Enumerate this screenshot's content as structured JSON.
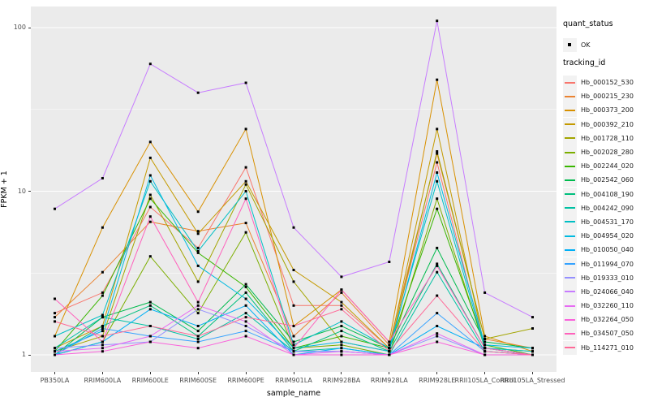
{
  "chart_data": {
    "type": "line",
    "title": "",
    "xlabel": "sample_name",
    "ylabel": "FPKM + 1",
    "y_scale": "log10",
    "ylim": [
      0.95,
      135
    ],
    "grid": "major-and-minor-white-on-gray",
    "y_ticks": [
      {
        "value": 1,
        "label": "1"
      },
      {
        "value": 10,
        "label": "10"
      },
      {
        "value": 100,
        "label": "100"
      }
    ],
    "categories": [
      "PB350LA",
      "RRIM600LA",
      "RRIM600LE",
      "RRIM600SE",
      "RRIM600PE",
      "RRIM901LA",
      "RRIM928BA",
      "RRIM928LA",
      "RRIM928LE",
      "RRII105LA_Control",
      "RRII105LA_Stressed"
    ],
    "series": [
      {
        "name": "Hb_000152_530",
        "color": "#F8766D",
        "values": [
          1.8,
          2.4,
          8.0,
          4.5,
          14.0,
          2.0,
          2.0,
          1.1,
          15.0,
          1.1,
          1.0
        ]
      },
      {
        "name": "Hb_000215_230",
        "color": "#EA8331",
        "values": [
          1.7,
          3.2,
          6.5,
          5.7,
          6.4,
          1.3,
          2.4,
          1.15,
          17.0,
          1.25,
          1.1
        ]
      },
      {
        "name": "Hb_000373_200",
        "color": "#D89000",
        "values": [
          1.3,
          6.0,
          20.0,
          7.5,
          24.0,
          1.5,
          2.5,
          1.2,
          48.0,
          1.3,
          1.05
        ]
      },
      {
        "name": "Hb_000392_210",
        "color": "#C49A00",
        "values": [
          1.1,
          1.5,
          16.0,
          5.5,
          11.5,
          3.3,
          2.1,
          1.1,
          24.0,
          1.1,
          1.0
        ]
      },
      {
        "name": "Hb_001728_110",
        "color": "#A3A500",
        "values": [
          1.05,
          1.3,
          9.5,
          2.8,
          11.0,
          2.8,
          1.2,
          1.05,
          17.5,
          1.25,
          1.45
        ]
      },
      {
        "name": "Hb_002028_280",
        "color": "#7CAE00",
        "values": [
          1.0,
          1.2,
          4.0,
          1.8,
          5.6,
          1.1,
          1.15,
          1.0,
          9.0,
          1.1,
          1.05
        ]
      },
      {
        "name": "Hb_002244_020",
        "color": "#39B600",
        "values": [
          1.05,
          2.3,
          9.0,
          4.2,
          2.6,
          1.1,
          1.3,
          1.1,
          7.8,
          1.15,
          1.0
        ]
      },
      {
        "name": "Hb_002542_060",
        "color": "#00BB4E",
        "values": [
          1.0,
          1.7,
          2.1,
          1.4,
          2.7,
          1.2,
          1.5,
          1.1,
          4.5,
          1.2,
          1.1
        ]
      },
      {
        "name": "Hb_004108_190",
        "color": "#00BF7D",
        "values": [
          1.0,
          1.5,
          2.0,
          1.3,
          2.4,
          1.05,
          1.4,
          1.05,
          3.6,
          1.1,
          1.0
        ]
      },
      {
        "name": "Hb_004242_090",
        "color": "#00C1A3",
        "values": [
          1.1,
          1.7,
          1.5,
          1.25,
          1.8,
          1.05,
          1.1,
          1.0,
          3.2,
          1.05,
          1.0
        ]
      },
      {
        "name": "Hb_004531_170",
        "color": "#00BFC4",
        "values": [
          1.3,
          1.75,
          11.5,
          4.3,
          10.0,
          1.15,
          1.6,
          1.1,
          11.5,
          1.1,
          1.05
        ]
      },
      {
        "name": "Hb_004954_020",
        "color": "#00BAE0",
        "values": [
          1.05,
          1.4,
          12.5,
          3.5,
          2.2,
          1.1,
          1.2,
          1.05,
          13.0,
          1.15,
          1.1
        ]
      },
      {
        "name": "Hb_010050_040",
        "color": "#00B0F6",
        "values": [
          1.0,
          1.2,
          1.9,
          1.5,
          2.0,
          1.0,
          1.1,
          1.0,
          1.5,
          1.1,
          1.0
        ]
      },
      {
        "name": "Hb_011994_070",
        "color": "#35A2FF",
        "values": [
          1.0,
          1.45,
          1.3,
          1.2,
          1.4,
          1.05,
          1.05,
          1.0,
          1.8,
          1.05,
          1.0
        ]
      },
      {
        "name": "Hb_019333_010",
        "color": "#9590FF",
        "values": [
          1.1,
          1.15,
          1.2,
          1.9,
          1.5,
          1.05,
          1.05,
          1.0,
          1.3,
          1.0,
          1.0
        ]
      },
      {
        "name": "Hb_024066_040",
        "color": "#C77CFF",
        "values": [
          7.8,
          12.0,
          60.0,
          40.0,
          46.0,
          6.0,
          3.0,
          3.7,
          110.0,
          2.4,
          1.7
        ]
      },
      {
        "name": "Hb_032260_110",
        "color": "#E76BF3",
        "values": [
          1.05,
          1.1,
          1.3,
          2.0,
          1.6,
          1.0,
          1.05,
          1.0,
          1.35,
          1.0,
          1.0
        ]
      },
      {
        "name": "Hb_032264_050",
        "color": "#FA62DB",
        "values": [
          1.0,
          1.05,
          1.2,
          1.1,
          1.3,
          1.0,
          1.0,
          1.0,
          1.2,
          1.0,
          1.0
        ]
      },
      {
        "name": "Hb_034507_050",
        "color": "#FF62BC",
        "values": [
          2.2,
          1.2,
          7.0,
          2.1,
          9.0,
          1.1,
          2.5,
          1.2,
          3.5,
          1.1,
          1.0
        ]
      },
      {
        "name": "Hb_114271_010",
        "color": "#FF6A98",
        "values": [
          1.6,
          1.3,
          1.5,
          1.3,
          1.7,
          1.5,
          1.9,
          1.05,
          2.3,
          1.05,
          1.0
        ]
      }
    ],
    "legend": {
      "position": "right",
      "quant_title": "quant_status",
      "quant_items": [
        {
          "label": "OK",
          "marker": "black-square-point"
        }
      ],
      "series_title": "tracking_id"
    },
    "style": {
      "panel_bg": "#EBEBEB",
      "grid_color": "#FFFFFF",
      "point_color": "#000000",
      "axis_text_color": "#4D4D4D",
      "tick_color": "#333333",
      "legend_key_bg": "#F2F2F2"
    }
  }
}
